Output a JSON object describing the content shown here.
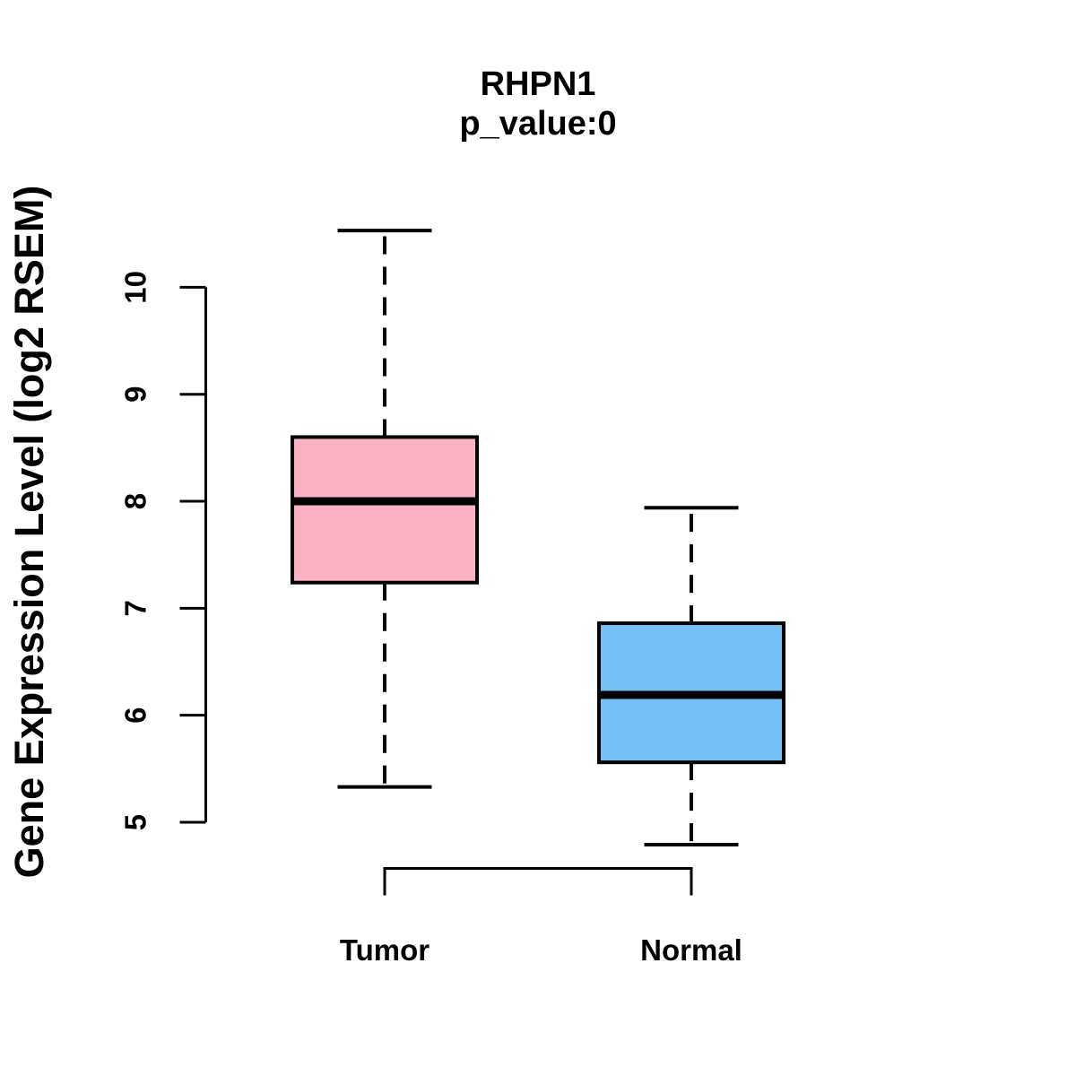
{
  "chart_data": {
    "type": "boxplot",
    "title": "RHPN1",
    "subtitle": "p_value:0",
    "ylabel": "Gene Expression Level (log2 RSEM)",
    "xlabel": "",
    "categories": [
      "Tumor",
      "Normal"
    ],
    "yticks": [
      5,
      6,
      7,
      8,
      9,
      10
    ],
    "ylim": [
      4.55,
      10.75
    ],
    "grid": false,
    "legend": "none",
    "colors": {
      "tumor_box": "#FCB1C4",
      "normal_box": "#74BFF5",
      "line": "#000000",
      "background": "#FFFFFF"
    },
    "series": [
      {
        "name": "Tumor",
        "color": "#FCB1C4",
        "whisker_low": 5.33,
        "q1": 7.24,
        "median": 8.0,
        "q3": 8.6,
        "whisker_high": 10.53
      },
      {
        "name": "Normal",
        "color": "#74BFF5",
        "whisker_low": 4.79,
        "q1": 5.56,
        "median": 6.19,
        "q3": 6.86,
        "whisker_high": 7.94
      }
    ]
  }
}
